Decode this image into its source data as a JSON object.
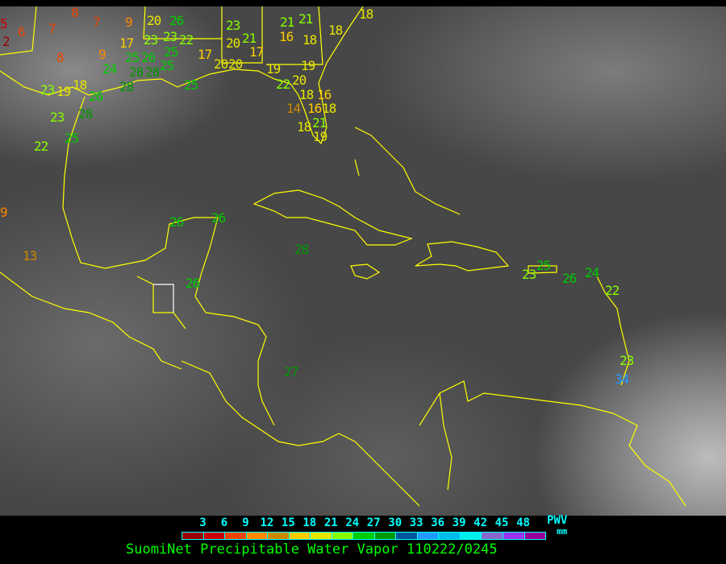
{
  "title": "SuomiNet Precipitable Water Vapor 110222/0245",
  "legend": {
    "unit_top": "PWV",
    "unit_bottom": "mm",
    "ticks": [
      "3",
      "6",
      "9",
      "12",
      "15",
      "18",
      "21",
      "24",
      "27",
      "30",
      "33",
      "36",
      "39",
      "42",
      "45",
      "48"
    ],
    "colors": [
      "#990000",
      "#cc0000",
      "#ee4400",
      "#ff8800",
      "#cc8800",
      "#ffcc00",
      "#e6e600",
      "#88ff00",
      "#00cc00",
      "#009900",
      "#005599",
      "#2299ff",
      "#00bbee",
      "#00eeee",
      "#8866cc",
      "#9933ee",
      "#990099"
    ]
  },
  "coastline_color": "#ffff00",
  "stations": [
    {
      "v": "2"
    },
    {
      "v": "5"
    },
    {
      "v": "6"
    },
    {
      "v": "7"
    },
    {
      "v": "8"
    },
    {
      "v": "7"
    },
    {
      "v": "9"
    },
    {
      "v": "17"
    },
    {
      "v": "20"
    },
    {
      "v": "26"
    },
    {
      "v": "23"
    },
    {
      "v": "23"
    },
    {
      "v": "22"
    },
    {
      "v": "25"
    },
    {
      "v": "8"
    },
    {
      "v": "9"
    },
    {
      "v": "25"
    },
    {
      "v": "26"
    },
    {
      "v": "25"
    },
    {
      "v": "24"
    },
    {
      "v": "28"
    },
    {
      "v": "28"
    },
    {
      "v": "17"
    },
    {
      "v": "20"
    },
    {
      "v": "20"
    },
    {
      "v": "23"
    },
    {
      "v": "21"
    },
    {
      "v": "20"
    },
    {
      "v": "17"
    },
    {
      "v": "21"
    },
    {
      "v": "21"
    },
    {
      "v": "16"
    },
    {
      "v": "18"
    },
    {
      "v": "18"
    },
    {
      "v": "19"
    },
    {
      "v": "19"
    },
    {
      "v": "20"
    },
    {
      "v": "22"
    },
    {
      "v": "18"
    },
    {
      "v": "16"
    },
    {
      "v": "14"
    },
    {
      "v": "16"
    },
    {
      "v": "18"
    },
    {
      "v": "21"
    },
    {
      "v": "18"
    },
    {
      "v": "19"
    },
    {
      "v": "23"
    },
    {
      "v": "19"
    },
    {
      "v": "18"
    },
    {
      "v": "26"
    },
    {
      "v": "28"
    },
    {
      "v": "23"
    },
    {
      "v": "28"
    },
    {
      "v": "25"
    },
    {
      "v": "22"
    },
    {
      "v": "9"
    },
    {
      "v": "13"
    },
    {
      "v": "26"
    },
    {
      "v": "26"
    },
    {
      "v": "28"
    },
    {
      "v": "26"
    },
    {
      "v": "27"
    },
    {
      "v": "25"
    },
    {
      "v": "23"
    },
    {
      "v": "26"
    },
    {
      "v": "24"
    },
    {
      "v": "22"
    },
    {
      "v": "23"
    },
    {
      "v": "34"
    },
    {
      "v": "25"
    },
    {
      "v": "18"
    }
  ]
}
